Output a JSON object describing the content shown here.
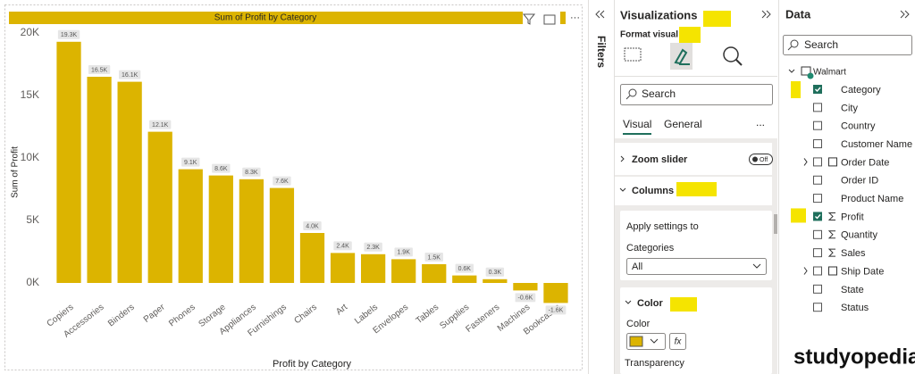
{
  "chart_data": {
    "type": "bar",
    "title": "Sum of Profit by Category",
    "x_label": "Profit by Category",
    "y_label": "Sum of Profit",
    "categories": [
      "Copiers",
      "Accessories",
      "Binders",
      "Paper",
      "Phones",
      "Storage",
      "Appliances",
      "Furnishings",
      "Chairs",
      "Art",
      "Labels",
      "Envelopes",
      "Tables",
      "Supplies",
      "Fasteners",
      "Machines",
      "Bookcases"
    ],
    "values": [
      19300,
      16500,
      16100,
      12100,
      9100,
      8600,
      8300,
      7600,
      4000,
      2400,
      2300,
      1900,
      1500,
      600,
      300,
      -600,
      -1600
    ],
    "value_labels": [
      "19.3K",
      "16.5K",
      "16.1K",
      "12.1K",
      "9.1K",
      "8.6K",
      "8.3K",
      "7.6K",
      "4.0K",
      "2.4K",
      "2.3K",
      "1.9K",
      "1.5K",
      "0.6K",
      "0.3K",
      "-0.6K",
      "-1.6K"
    ],
    "color": "#dcb400",
    "ylim": [
      -2000,
      20500
    ],
    "yticks": [
      {
        "value": 0,
        "label": "0K"
      },
      {
        "value": 5000,
        "label": "5K"
      },
      {
        "value": 10000,
        "label": "10K"
      },
      {
        "value": 15000,
        "label": "15K"
      },
      {
        "value": 20000,
        "label": "20K"
      }
    ],
    "grid": false
  },
  "filters": {
    "title": "Filters"
  },
  "visualizations": {
    "title": "Visualizations",
    "subtitle": "Format visual",
    "search": "Search",
    "tabs": [
      "Visual",
      "General"
    ],
    "more": "...",
    "zoom_slider": {
      "label": "Zoom slider",
      "toggle": "Off"
    },
    "columns": {
      "label": "Columns",
      "apply": "Apply settings to",
      "field": "Categories",
      "dropdown": "All"
    },
    "color": {
      "label": "Color",
      "field": "Color",
      "fx": "fx",
      "transparency": "Transparency"
    }
  },
  "data_pane": {
    "title": "Data",
    "search": "Search",
    "table": "Walmart",
    "fields": [
      {
        "name": "Category",
        "checked": true,
        "icon": null,
        "expandable": false
      },
      {
        "name": "City",
        "checked": false,
        "icon": null,
        "expandable": false
      },
      {
        "name": "Country",
        "checked": false,
        "icon": null,
        "expandable": false
      },
      {
        "name": "Customer Name",
        "checked": false,
        "icon": null,
        "expandable": false
      },
      {
        "name": "Order Date",
        "checked": false,
        "icon": "calendar",
        "expandable": true
      },
      {
        "name": "Order ID",
        "checked": false,
        "icon": null,
        "expandable": false
      },
      {
        "name": "Product Name",
        "checked": false,
        "icon": null,
        "expandable": false
      },
      {
        "name": "Profit",
        "checked": true,
        "icon": "sigma",
        "expandable": false
      },
      {
        "name": "Quantity",
        "checked": false,
        "icon": "sigma",
        "expandable": false
      },
      {
        "name": "Sales",
        "checked": false,
        "icon": "sigma",
        "expandable": false
      },
      {
        "name": "Ship Date",
        "checked": false,
        "icon": "calendar",
        "expandable": true
      },
      {
        "name": "State",
        "checked": false,
        "icon": null,
        "expandable": false
      },
      {
        "name": "Status",
        "checked": false,
        "icon": null,
        "expandable": false
      }
    ]
  },
  "watermark": "studyopedia"
}
